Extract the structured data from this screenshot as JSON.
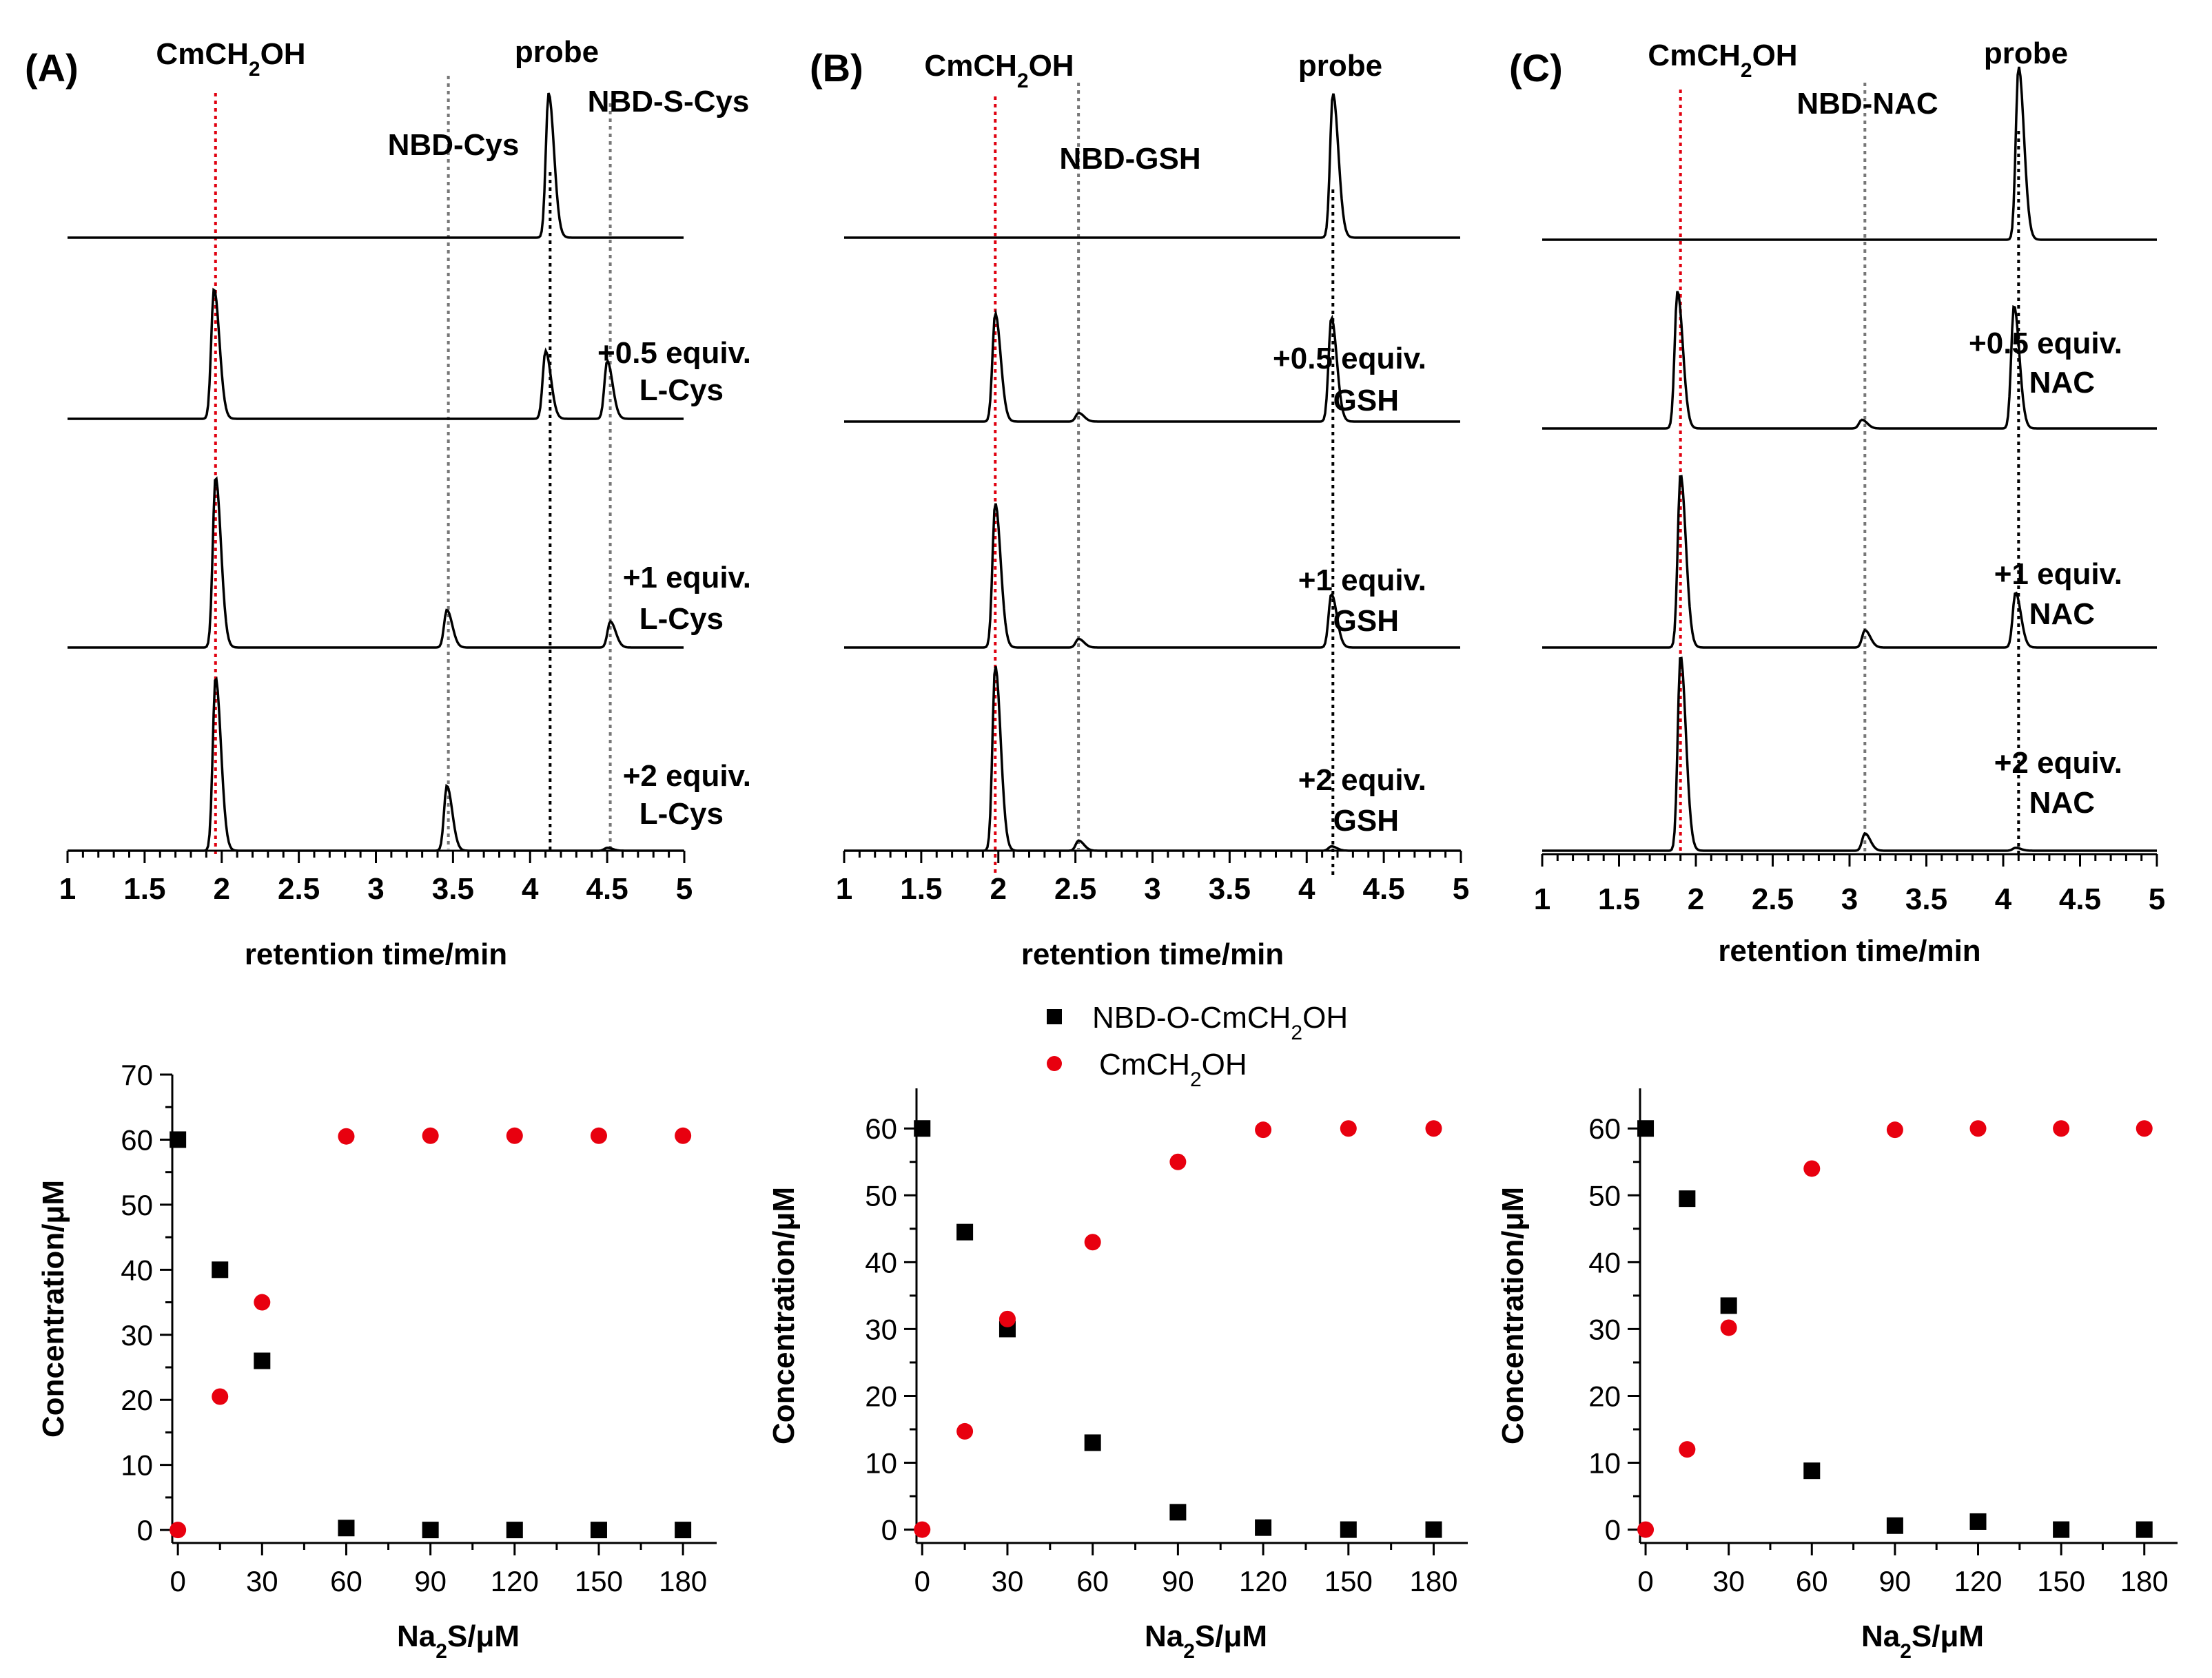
{
  "chart_data": [
    {
      "type": "line",
      "panel": "(A)",
      "title": "",
      "xlabel": "retention time/min",
      "xlim": [
        1,
        5
      ],
      "xticks": [
        "1",
        "1.5",
        "2",
        "2.5",
        "3",
        "3.5",
        "4",
        "4.5",
        "5"
      ],
      "peak_labels": [
        {
          "text": "CmCH",
          "sub": "2",
          "rest": "OH"
        },
        {
          "text": "probe"
        },
        {
          "text": "NBD-Cys"
        },
        {
          "text": "NBD-S-Cys"
        }
      ],
      "reference_lines": [
        {
          "name": "CmCH2OH",
          "x": 1.96,
          "color": "#e0000f"
        },
        {
          "name": "NBD-Cys",
          "x": 3.47,
          "color": "#777777"
        },
        {
          "name": "probe",
          "x": 4.13,
          "color": "#000000"
        },
        {
          "name": "NBD-S-Cys",
          "x": 4.52,
          "color": "#777777"
        }
      ],
      "series": [
        {
          "name": "probe",
          "label": [],
          "peaks": [
            {
              "x": 4.12,
              "h": 1.0
            }
          ]
        },
        {
          "name": "+0.5 equiv. L-Cys",
          "label": [
            "+0.5 equiv.",
            "L-Cys"
          ],
          "peaks": [
            {
              "x": 1.95,
              "h": 0.9
            },
            {
              "x": 4.1,
              "h": 0.47
            },
            {
              "x": 4.5,
              "h": 0.4
            }
          ]
        },
        {
          "name": "+1 equiv. L-Cys",
          "label": [
            "+1 equiv.",
            "L-Cys"
          ],
          "peaks": [
            {
              "x": 1.96,
              "h": 1.18
            },
            {
              "x": 3.46,
              "h": 0.26
            },
            {
              "x": 4.52,
              "h": 0.18
            }
          ]
        },
        {
          "name": "+2 equiv. L-Cys",
          "label": [
            "+2 equiv.",
            "L-Cys"
          ],
          "peaks": [
            {
              "x": 1.96,
              "h": 1.2
            },
            {
              "x": 3.46,
              "h": 0.45
            },
            {
              "x": 4.5,
              "h": 0.02
            }
          ]
        }
      ]
    },
    {
      "type": "line",
      "panel": "(B)",
      "title": "",
      "xlabel": "retention time/min",
      "xlim": [
        1,
        5
      ],
      "xticks": [
        "1",
        "1.5",
        "2",
        "2.5",
        "3",
        "3.5",
        "4",
        "4.5",
        "5"
      ],
      "peak_labels": [
        {
          "text": "CmCH",
          "sub": "2",
          "rest": "OH"
        },
        {
          "text": "probe"
        },
        {
          "text": "NBD-GSH"
        }
      ],
      "reference_lines": [
        {
          "name": "CmCH2OH",
          "x": 1.98,
          "color": "#e0000f"
        },
        {
          "name": "NBD-GSH",
          "x": 2.52,
          "color": "#777777"
        },
        {
          "name": "probe",
          "x": 4.17,
          "color": "#000000"
        }
      ],
      "series": [
        {
          "name": "probe",
          "label": [],
          "peaks": [
            {
              "x": 4.17,
              "h": 1.0
            }
          ]
        },
        {
          "name": "+0.5 equiv. GSH",
          "label": [
            "+0.5 equiv.",
            "GSH"
          ],
          "peaks": [
            {
              "x": 1.98,
              "h": 0.75
            },
            {
              "x": 2.52,
              "h": 0.06
            },
            {
              "x": 4.16,
              "h": 0.72
            }
          ]
        },
        {
          "name": "+1 equiv. GSH",
          "label": [
            "+1 equiv.",
            "GSH"
          ],
          "peaks": [
            {
              "x": 1.98,
              "h": 1.0
            },
            {
              "x": 2.52,
              "h": 0.06
            },
            {
              "x": 4.16,
              "h": 0.37
            }
          ]
        },
        {
          "name": "+2 equiv. GSH",
          "label": [
            "+2 equiv.",
            "GSH"
          ],
          "peaks": [
            {
              "x": 1.98,
              "h": 1.28
            },
            {
              "x": 2.52,
              "h": 0.07
            },
            {
              "x": 4.16,
              "h": 0.03
            }
          ]
        }
      ]
    },
    {
      "type": "line",
      "panel": "(C)",
      "title": "",
      "xlabel": "retention time/min",
      "xlim": [
        1,
        5
      ],
      "xticks": [
        "1",
        "1.5",
        "2",
        "2.5",
        "3",
        "3.5",
        "4",
        "4.5",
        "5"
      ],
      "peak_labels": [
        {
          "text": "CmCH",
          "sub": "2",
          "rest": "OH"
        },
        {
          "text": "probe"
        },
        {
          "text": "NBD-NAC"
        }
      ],
      "reference_lines": [
        {
          "name": "CmCH2OH",
          "x": 1.9,
          "color": "#e0000f"
        },
        {
          "name": "NBD-NAC",
          "x": 3.1,
          "color": "#777777"
        },
        {
          "name": "probe",
          "x": 4.1,
          "color": "#000000"
        }
      ],
      "series": [
        {
          "name": "probe",
          "label": [],
          "peaks": [
            {
              "x": 4.1,
              "h": 1.2
            }
          ]
        },
        {
          "name": "+0.5 equiv. NAC",
          "label": [
            "+0.5 equiv.",
            "NAC"
          ],
          "peaks": [
            {
              "x": 1.88,
              "h": 0.95
            },
            {
              "x": 3.08,
              "h": 0.06
            },
            {
              "x": 4.07,
              "h": 0.85
            }
          ]
        },
        {
          "name": "+1 equiv. NAC",
          "label": [
            "+1 equiv.",
            "NAC"
          ],
          "peaks": [
            {
              "x": 1.9,
              "h": 1.2
            },
            {
              "x": 3.1,
              "h": 0.12
            },
            {
              "x": 4.08,
              "h": 0.38
            }
          ]
        },
        {
          "name": "+2 equiv. NAC",
          "label": [
            "+2 equiv.",
            "NAC"
          ],
          "peaks": [
            {
              "x": 1.9,
              "h": 1.35
            },
            {
              "x": 3.1,
              "h": 0.12
            },
            {
              "x": 4.08,
              "h": 0.02
            }
          ]
        }
      ]
    },
    {
      "type": "scatter",
      "panel": "A-bottom",
      "xlabel": "Na2S/μM",
      "ylabel": "Concentration/μM",
      "xlim": [
        -2,
        192
      ],
      "ylim": [
        -2,
        70
      ],
      "xticks": [
        0,
        30,
        60,
        90,
        120,
        150,
        180
      ],
      "yticks": [
        0,
        10,
        20,
        30,
        40,
        50,
        60,
        70
      ],
      "x": [
        0,
        15,
        30,
        60,
        90,
        120,
        150,
        180
      ],
      "series": [
        {
          "name": "NBD-O-CmCH2OH",
          "marker": "square",
          "color": "#000000",
          "values": [
            60,
            40,
            26,
            0.3,
            0,
            0,
            0,
            0
          ]
        },
        {
          "name": "CmCH2OH",
          "marker": "circle",
          "color": "#e8000f",
          "values": [
            0,
            20.5,
            35,
            60.5,
            60.6,
            60.6,
            60.6,
            60.6
          ]
        }
      ]
    },
    {
      "type": "scatter",
      "panel": "B-bottom",
      "xlabel": "Na2S/μM",
      "ylabel": "Concentration/μM",
      "xlim": [
        -2,
        192
      ],
      "ylim": [
        -2,
        66
      ],
      "xticks": [
        0,
        30,
        60,
        90,
        120,
        150,
        180
      ],
      "yticks": [
        0,
        10,
        20,
        30,
        40,
        50,
        60
      ],
      "x": [
        0,
        15,
        30,
        60,
        90,
        120,
        150,
        180
      ],
      "series": [
        {
          "name": "NBD-O-CmCH2OH",
          "marker": "square",
          "color": "#000000",
          "values": [
            60,
            44.5,
            30,
            13,
            2.6,
            0.3,
            0,
            0
          ]
        },
        {
          "name": "CmCH2OH",
          "marker": "circle",
          "color": "#e8000f",
          "values": [
            0,
            14.7,
            31.5,
            43,
            55,
            59.8,
            60,
            60
          ]
        }
      ]
    },
    {
      "type": "scatter",
      "panel": "C-bottom",
      "xlabel": "Na2S/μM",
      "ylabel": "Concentration/μM",
      "xlim": [
        -2,
        192
      ],
      "ylim": [
        -2,
        66
      ],
      "xticks": [
        0,
        30,
        60,
        90,
        120,
        150,
        180
      ],
      "yticks": [
        0,
        10,
        20,
        30,
        40,
        50,
        60
      ],
      "x": [
        0,
        15,
        30,
        60,
        90,
        120,
        150,
        180
      ],
      "series": [
        {
          "name": "NBD-O-CmCH2OH",
          "marker": "square",
          "color": "#000000",
          "values": [
            60,
            49.5,
            33.5,
            8.8,
            0.6,
            1.2,
            0,
            0
          ]
        },
        {
          "name": "CmCH2OH",
          "marker": "circle",
          "color": "#e8000f",
          "values": [
            0,
            12,
            30.2,
            54,
            59.8,
            60,
            60,
            60
          ]
        }
      ]
    }
  ],
  "legend": {
    "entries": [
      {
        "name": "NBD-O-CmCH2OH",
        "text": "NBD-O-CmCH",
        "sub": "2",
        "rest": "OH",
        "marker": "square",
        "color": "#000000"
      },
      {
        "name": "CmCH2OH",
        "text": "CmCH",
        "sub": "2",
        "rest": "OH",
        "marker": "circle",
        "color": "#e8000f"
      }
    ]
  },
  "na2s_label": {
    "text": "Na",
    "sub": "2",
    "rest": "S/μM"
  }
}
